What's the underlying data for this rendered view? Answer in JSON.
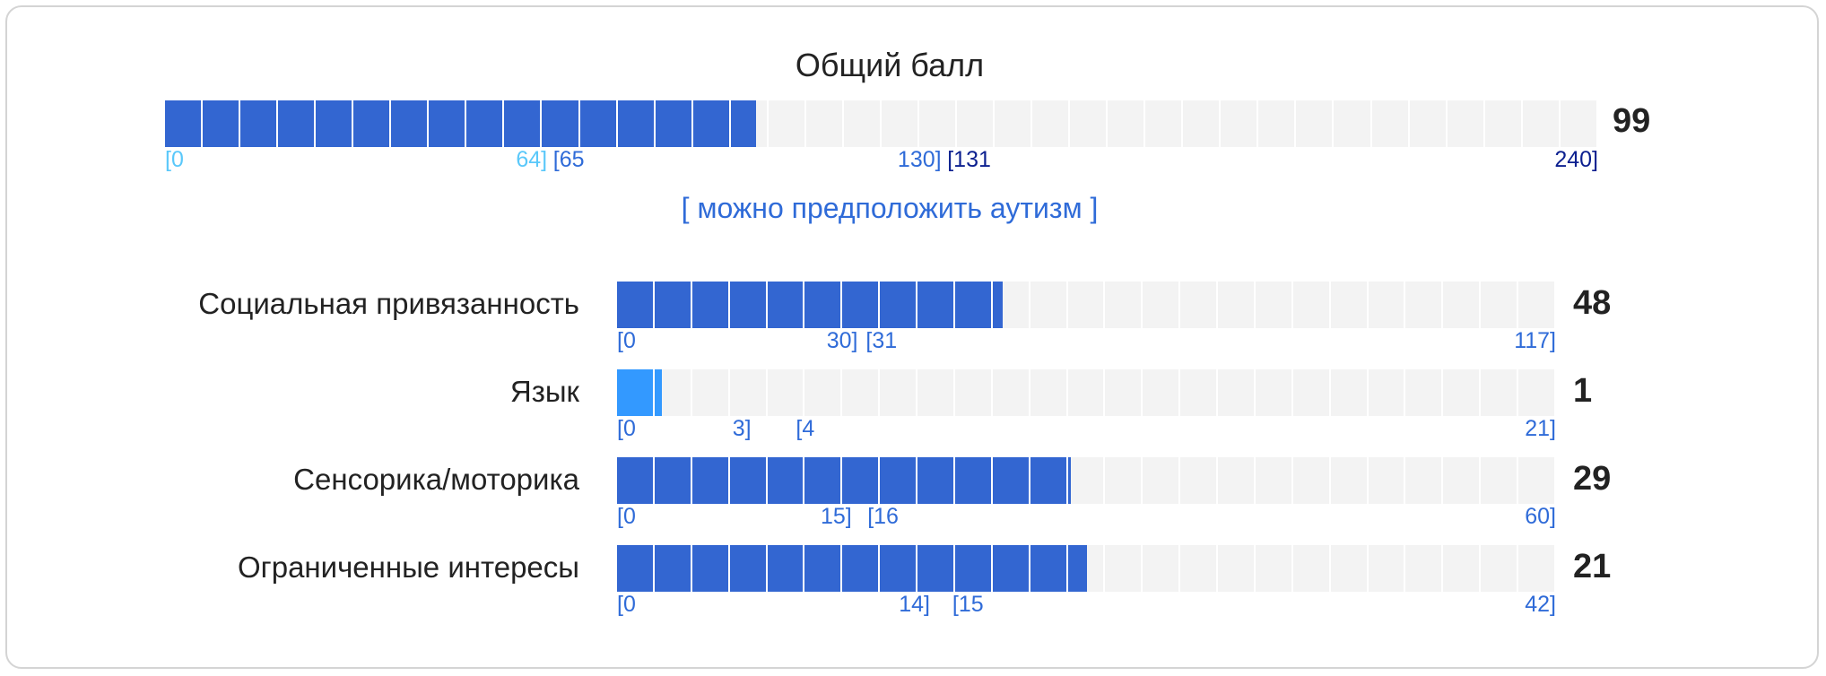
{
  "total": {
    "title": "Общий балл",
    "value": "99",
    "score": 99,
    "max": 240,
    "verdict": "[ можно предположить аутизм ]",
    "ticks": [
      {
        "text": "[0",
        "at": 0,
        "align": "left",
        "color": "#5ac8fa"
      },
      {
        "text": "64]",
        "at": 64,
        "align": "right",
        "color": "#5ac8fa"
      },
      {
        "text": "[65",
        "at": 65,
        "align": "left",
        "color": "#2f6bd8"
      },
      {
        "text": "130]",
        "at": 130,
        "align": "right",
        "color": "#2f6bd8"
      },
      {
        "text": "[131",
        "at": 131,
        "align": "left",
        "color": "#0b1f8f"
      },
      {
        "text": "240]",
        "at": 240,
        "align": "right",
        "color": "#0b1f8f"
      }
    ]
  },
  "subscales": [
    {
      "label": "Социальная привязанность",
      "value": "48",
      "score": 48,
      "max": 117,
      "ticks": [
        {
          "text": "[0",
          "at": 0,
          "align": "left",
          "color": "#2f6bd8"
        },
        {
          "text": "30]",
          "at": 30,
          "align": "right",
          "color": "#2f6bd8"
        },
        {
          "text": "[31",
          "at": 31,
          "align": "left",
          "color": "#2f6bd8"
        },
        {
          "text": "117]",
          "at": 117,
          "align": "right",
          "color": "#2f6bd8"
        }
      ]
    },
    {
      "label": "Язык",
      "value": "1",
      "score": 1,
      "max": 21,
      "ticks": [
        {
          "text": "[0",
          "at": 0,
          "align": "left",
          "color": "#2f6bd8"
        },
        {
          "text": "3]",
          "at": 3,
          "align": "right",
          "color": "#2f6bd8"
        },
        {
          "text": "[4",
          "at": 4,
          "align": "left",
          "color": "#2f6bd8"
        },
        {
          "text": "21]",
          "at": 21,
          "align": "right",
          "color": "#2f6bd8"
        }
      ]
    },
    {
      "label": "Сенсорика/моторика",
      "value": "29",
      "score": 29,
      "max": 60,
      "ticks": [
        {
          "text": "[0",
          "at": 0,
          "align": "left",
          "color": "#2f6bd8"
        },
        {
          "text": "15]",
          "at": 15,
          "align": "right",
          "color": "#2f6bd8"
        },
        {
          "text": "[16",
          "at": 16,
          "align": "left",
          "color": "#2f6bd8"
        },
        {
          "text": "60]",
          "at": 60,
          "align": "right",
          "color": "#2f6bd8"
        }
      ]
    },
    {
      "label": "Ограниченные интересы",
      "value": "21",
      "score": 21,
      "max": 42,
      "ticks": [
        {
          "text": "[0",
          "at": 0,
          "align": "left",
          "color": "#2f6bd8"
        },
        {
          "text": "14]",
          "at": 14,
          "align": "right",
          "color": "#2f6bd8"
        },
        {
          "text": "[15",
          "at": 15,
          "align": "left",
          "color": "#2f6bd8"
        },
        {
          "text": "42]",
          "at": 42,
          "align": "right",
          "color": "#2f6bd8"
        }
      ]
    }
  ],
  "colors": {
    "fill": "#3366d1",
    "fill_light": "#3399ff",
    "track": "#f3f3f3",
    "verdict": "#2f6bd8"
  }
}
